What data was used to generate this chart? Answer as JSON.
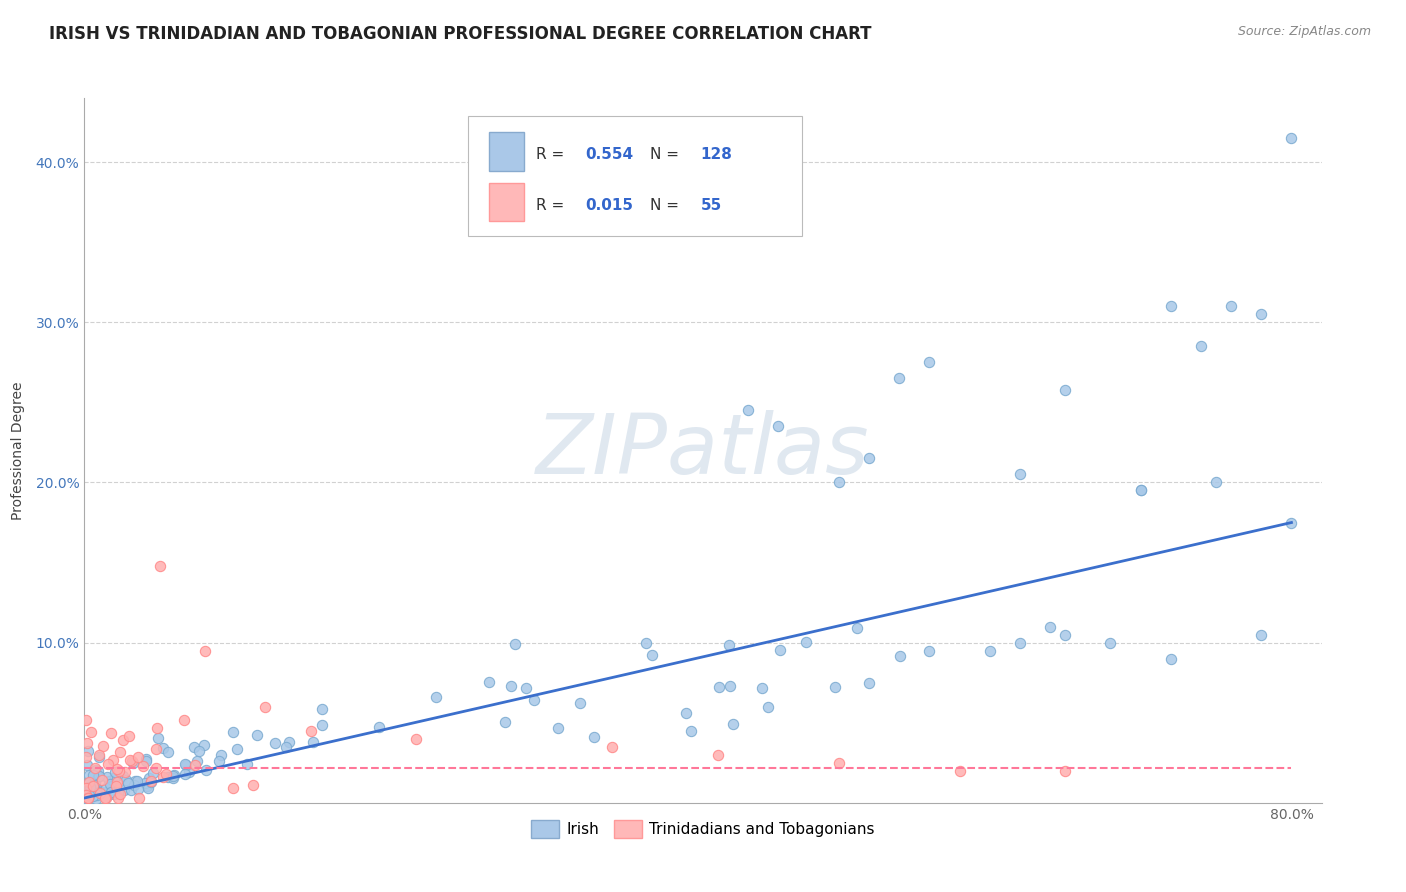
{
  "title": "IRISH VS TRINIDADIAN AND TOBAGONIAN PROFESSIONAL DEGREE CORRELATION CHART",
  "source_text": "Source: ZipAtlas.com",
  "ylabel": "Professional Degree",
  "xlim": [
    0.0,
    0.82
  ],
  "ylim": [
    0.0,
    0.44
  ],
  "xtick_labels": [
    "0.0%",
    "",
    "",
    "",
    "",
    "",
    "",
    "",
    "80.0%"
  ],
  "xtick_values": [
    0.0,
    0.1,
    0.2,
    0.3,
    0.4,
    0.5,
    0.6,
    0.7,
    0.8
  ],
  "ytick_labels": [
    "10.0%",
    "20.0%",
    "30.0%",
    "40.0%"
  ],
  "ytick_values": [
    0.1,
    0.2,
    0.3,
    0.4
  ],
  "blue_color": "#A8C8E8",
  "pink_color": "#FFB0B0",
  "trend_blue": "#3B6FCC",
  "trend_pink": "#FF7799",
  "watermark": "ZIPatlas",
  "legend_R_blue": "0.554",
  "legend_N_blue": "128",
  "legend_R_pink": "0.015",
  "legend_N_pink": "55",
  "legend_label_blue": "Irish",
  "legend_label_pink": "Trinidadians and Tobagonians",
  "background_color": "#FFFFFF",
  "grid_color": "#CCCCCC",
  "title_fontsize": 12,
  "tick_fontsize": 10,
  "watermark_color": "#E0E8F0",
  "watermark_fontsize": 60,
  "trend_blue_x0": 0.0,
  "trend_blue_y0": 0.003,
  "trend_blue_x1": 0.8,
  "trend_blue_y1": 0.175,
  "trend_pink_x0": 0.0,
  "trend_pink_y0": 0.022,
  "trend_pink_x1": 0.8,
  "trend_pink_y1": 0.022
}
